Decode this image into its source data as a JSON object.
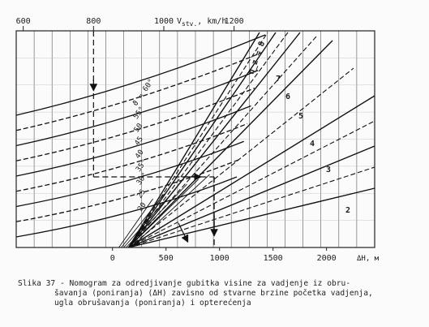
{
  "chart_data": {
    "type": "line",
    "top_axis": {
      "label_prefix": "V",
      "label_sub": "stv.",
      "label_unit": ", km/h",
      "ticks": [
        "600",
        "800",
        "1000",
        "1200"
      ],
      "values": [
        600,
        800,
        1000,
        1200
      ],
      "range": [
        580,
        1600
      ]
    },
    "bottom_axis": {
      "label": "ΔH, м",
      "ticks": [
        "0",
        "500",
        "1000",
        "1500",
        "2000"
      ],
      "values": [
        0,
        500,
        1000,
        1500,
        2000
      ],
      "range": [
        -900,
        2450
      ]
    },
    "left_family": {
      "title": "ϑ = 60°",
      "labels": [
        "ϑ = 60°",
        "55°",
        "50",
        "45",
        "40",
        "35°",
        "30°",
        "25",
        "20"
      ],
      "angles_deg": [
        60,
        55,
        50,
        45,
        40,
        35,
        30,
        25,
        20
      ]
    },
    "right_family": {
      "title": "n_z = 8",
      "labels": [
        "n_z = 8",
        "7",
        "6",
        "5",
        "4",
        "3",
        "2"
      ],
      "values": [
        8,
        7,
        6,
        5,
        4,
        3,
        2
      ]
    },
    "example_path": {
      "speed_kmh": 800,
      "delta_h_m": 950,
      "style": "dashed with arrows"
    }
  },
  "caption": {
    "line1": "Slika 37 - Nomogram za odredjivanje gubitka visine za vadjenje iz obru-",
    "line2": "šavanja (poniranja) (ΔH) zavisno od stvarne brzine početka vadjenja,",
    "line3": "ugla obrušavanja (poniranja) i opterećenja"
  }
}
